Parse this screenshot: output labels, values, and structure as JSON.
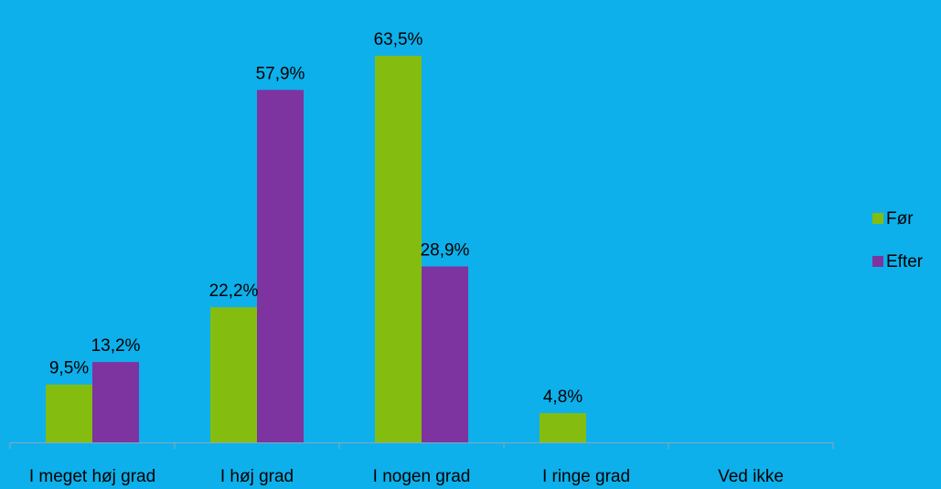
{
  "chart_data": {
    "type": "bar",
    "title": "",
    "xlabel": "",
    "ylabel": "",
    "categories": [
      "I meget høj grad",
      "I høj grad",
      "I nogen grad",
      "I ringe grad",
      "Ved ikke"
    ],
    "series": [
      {
        "name": "Før",
        "color": "#84bd10",
        "values": [
          9.5,
          22.2,
          63.5,
          4.8,
          null
        ],
        "labels": [
          "9,5%",
          "22,2%",
          "63,5%",
          "4,8%",
          ""
        ]
      },
      {
        "name": "Efter",
        "color": "#7d33a0",
        "values": [
          13.2,
          57.9,
          28.9,
          null,
          null
        ],
        "labels": [
          "13,2%",
          "57,9%",
          "28,9%",
          "",
          ""
        ]
      }
    ],
    "ylim": [
      0,
      70
    ],
    "y_axis_visible": false,
    "grid": false,
    "legend": "right",
    "background": "#0db0eb",
    "axis_color": "#8aa7b7"
  }
}
